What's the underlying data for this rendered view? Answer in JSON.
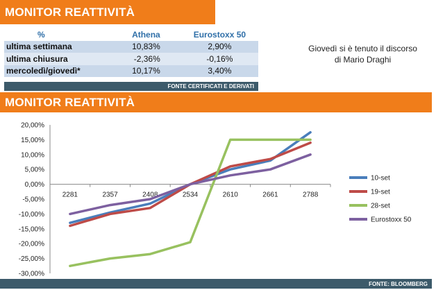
{
  "header": {
    "title_top": "MONITOR REATTIVITÀ",
    "title_chart": "MONITOR REATTIVITÀ"
  },
  "table": {
    "headers": [
      "%",
      "Athena",
      "Eurostoxx 50"
    ],
    "rows": [
      {
        "label": "ultima settimana",
        "athena": "10,83%",
        "eurostoxx": "2,90%"
      },
      {
        "label": "ultima chiusura",
        "athena": "-2,36%",
        "eurostoxx": "-0,16%"
      },
      {
        "label": "mercoledì/giovedì*",
        "athena": "10,17%",
        "eurostoxx": "3,40%"
      }
    ],
    "source": "FONTE CERTIFICATI E DERIVATI"
  },
  "note": {
    "line1": "Giovedì si è tenuto il discorso",
    "line2": "di  Mario Draghi"
  },
  "footer": {
    "source": "FONTE: BLOOMBERG"
  },
  "colors": {
    "orange": "#f07d1a",
    "dark_bar": "#3c5a6a",
    "header_blue": "#2f6fa8"
  },
  "chart_data": {
    "type": "line",
    "title": "",
    "xlabel": "",
    "ylabel": "",
    "x": [
      "2281",
      "2357",
      "2408",
      "2534",
      "2610",
      "2661",
      "2788"
    ],
    "ylim": [
      -0.3,
      0.2
    ],
    "yticks": [
      "20,00%",
      "15,00%",
      "10,00%",
      "5,00%",
      "0,00%",
      "-5,00%",
      "-10,00%",
      "-15,00%",
      "-20,00%",
      "-25,00%",
      "-30,00%"
    ],
    "grid": false,
    "legend_position": "right",
    "series": [
      {
        "name": "10-set",
        "color": "#4a7ebb",
        "values": [
          -0.13,
          -0.095,
          -0.065,
          0.0,
          0.05,
          0.08,
          0.175
        ]
      },
      {
        "name": "19-set",
        "color": "#be4b48",
        "values": [
          -0.14,
          -0.1,
          -0.08,
          0.0,
          0.06,
          0.085,
          0.14
        ]
      },
      {
        "name": "28-set",
        "color": "#98c15f",
        "values": [
          -0.275,
          -0.25,
          -0.235,
          -0.195,
          0.15,
          0.15,
          0.15
        ]
      },
      {
        "name": "Eurostoxx 50",
        "color": "#7d60a0",
        "values": [
          -0.1,
          -0.07,
          -0.05,
          0.0,
          0.03,
          0.05,
          0.1
        ]
      }
    ]
  }
}
